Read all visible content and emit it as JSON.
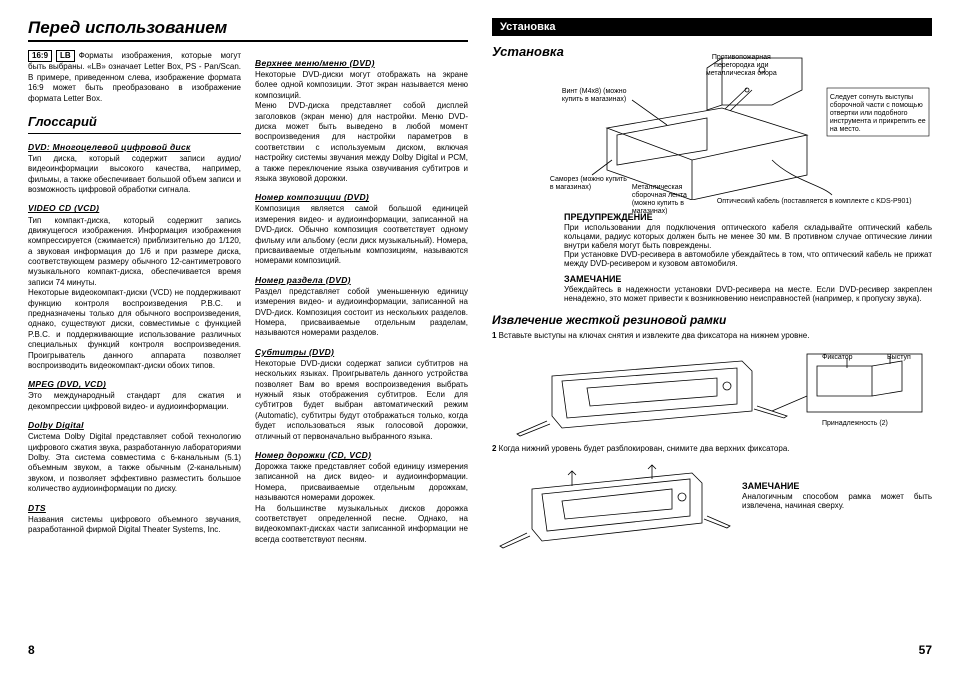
{
  "left": {
    "header": "Перед использованием",
    "badge1": "16:9",
    "badge2": "LB",
    "intro": "Форматы изображения, которые могут быть выбраны. «LB» означает Letter Box, PS - Pan/Scan. В примере, приведенном слева, изображение формата 16:9 может быть преобразовано в изображение формата Letter Box.",
    "glossary_h": "Глоссарий",
    "terms1": [
      {
        "t": "DVD: Многоцелевой цифровой диск",
        "b": "Тип диска, который содержит записи аудио/видеоинформации высокого качества, например, фильмы, а также обеспечивает большой объем записи и возможность цифровой обработки сигнала."
      },
      {
        "t": "VIDEO CD (VCD)",
        "b": "Тип компакт-диска, который содержит запись движущегося изображения. Информация изображения компрессируется (сжимается) приблизительно до 1/120, а звуковая информация до 1/6 и при размере диска, соответствующем размеру обычного 12-сантиметрового музыкального компакт-диска, обеспечивается время записи 74 минуты.\nНекоторые видеокомпакт-диски (VCD) не поддерживают функцию контроля воспроизведения P.B.C. и предназначены только для обычного воспроизведения, однако, существуют диски, совместимые с функцией P.B.C. и поддерживающие использование различных специальных функций контроля воспроизведения. Проигрыватель данного аппарата позволяет воспроизводить видеокомпакт-диски обоих типов."
      },
      {
        "t": "MPEG (DVD, VCD)",
        "b": "Это международный стандарт для сжатия и декомпрессии цифровой видео- и аудиоинформации."
      },
      {
        "t": "Dolby Digital",
        "b": "Система Dolby Digital представляет собой технологию цифрового сжатия звука, разработанную лабораториями Dolby. Эта система совместима с 6-канальным (5.1) объемным звуком, а также обычным (2-канальным) звуком, и позволяет эффективно разместить большое количество аудиоинформации по диску."
      },
      {
        "t": "DTS",
        "b": "Названия системы цифрового объемного звучания, разработанной фирмой Digital Theater Systems, Inc."
      }
    ],
    "terms2": [
      {
        "t": "Верхнее меню/меню (DVD)",
        "b": "Некоторые DVD-диски могут отображать на экране более одной композиции. Этот экран называется меню композиций.\nМеню DVD-диска представляет собой дисплей заголовков (экран меню) для настройки. Меню DVD-диска может быть выведено в любой момент воспроизведения для настройки параметров в соответствии с используемым диском, включая настройку системы звучания между Dolby Digital и PCM, а также переключение языка озвучивания субтитров и языка звуковой дорожки."
      },
      {
        "t": "Номер композиции (DVD)",
        "b": "Композиция является самой большой единицей измерения видео- и аудиоинформации, записанной на DVD-диск. Обычно композиция соответствует одному фильму или альбому (если диск музыкальный). Номера, присваиваемые отдельным композициям, называются номерами композиций."
      },
      {
        "t": "Номер раздела (DVD)",
        "b": "Раздел представляет собой уменьшенную единицу измерения видео- и аудиоинформации, записанной на DVD-диск. Композиция состоит из нескольких разделов. Номера, присваиваемые отдельным разделам, называются номерами разделов."
      },
      {
        "t": "Субтитры (DVD)",
        "b": "Некоторые DVD-диски содержат записи субтитров на нескольких языках. Проигрыватель данного устройства позволяет Вам во время воспроизведения выбрать нужный язык отображения субтитров. Если для субтитров будет выбран автоматический режим (Automatic), субтитры будут отображаться только, когда будет использоваться язык голосовой дорожки, отличный от первоначально выбранного языка."
      },
      {
        "t": "Номер дорожки (CD, VCD)",
        "b": "Дорожка также представляет собой единицу измерения записанной на диск видео- и аудиоинформации. Номера, присваиваемые отдельным дорожкам, называются номерами дорожек.\nНа большинстве музыкальных дисков дорожка соответствует определенной песне. Однако, на видеокомпакт-дисках части записанной информации не всегда соответствуют песням."
      }
    ],
    "page_num": "8"
  },
  "right": {
    "header_bar": "Установка",
    "install_h": "Установка",
    "cl_fire": "Противопожарная перегородка или металлическая опора",
    "cl_screw": "Винт (M4x8) (можно купить в магазинах)",
    "cl_self": "Саморез (можно купить в магазинах)",
    "cl_tape": "Металлическая сборочная лента (можно купить в магазинах)",
    "cl_note": "Следует согнуть выступы сборочной части с помощью отвертки или подобного инструмента и прикрепить ее на место.",
    "cl_optic": "Оптический кабель (поставляется в комплекте с KDS-P901)",
    "warn_h": "ПРЕДУПРЕЖДЕНИЕ",
    "warn_b": "При использовании для подключения оптического кабеля складывайте оптический кабель кольцами, радиус которых должен быть не менее 30 мм. В противном случае оптические линии внутри кабеля могут быть повреждены.\nПри установке DVD-ресивера в автомобиле убеждайтесь в том, что оптический кабель не прижат между DVD-ресивером и кузовом автомобиля.",
    "note_h": "ЗАМЕЧАНИЕ",
    "note_b": "Убеждайтесь в надежности установки DVD-ресивера на месте. Если DVD-ресивер закреплен ненадежно, это может привести к возникновению неисправностей (например, к пропуску звука).",
    "extract_h": "Извлечение жесткой резиновой рамки",
    "step1": "Вставьте выступы на ключах снятия и извлеките два фиксатора на нижнем уровне.",
    "cl_fix": "Фиксатор",
    "cl_pro": "Выступ",
    "cl_acc": "Принадлежность (2)",
    "step2": "Когда нижний уровень будет разблокирован, снимите два верхних фиксатора.",
    "note2_h": "ЗАМЕЧАНИЕ",
    "note2_b": "Аналогичным способом рамка может быть извлечена, начиная сверху.",
    "page_num": "57"
  }
}
